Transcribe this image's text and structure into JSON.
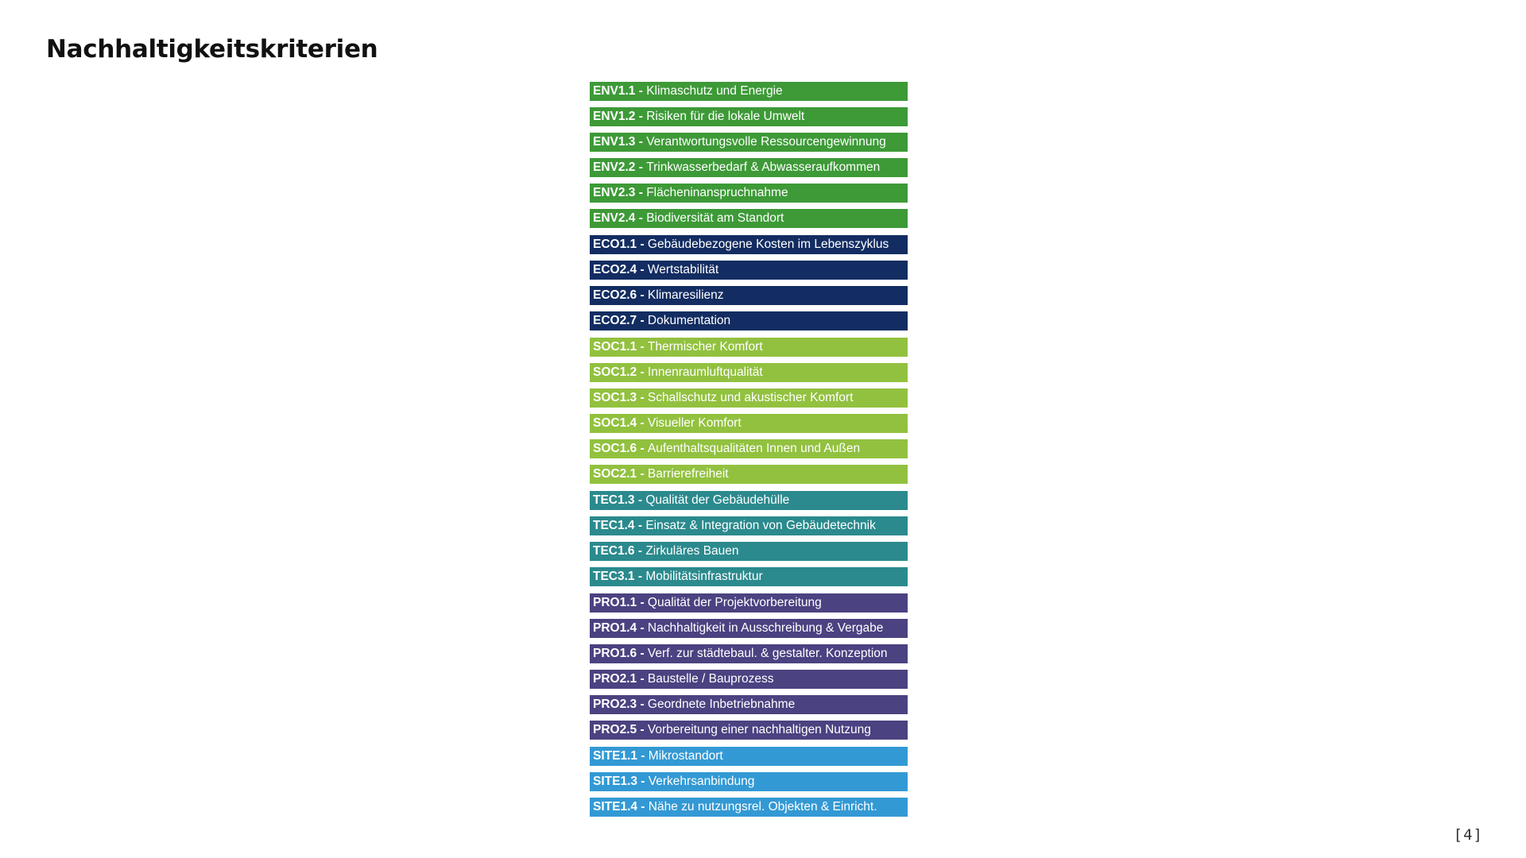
{
  "page": {
    "title": "Nachhaltigkeitskriterien",
    "page_number": "[4]"
  },
  "groups": [
    {
      "key": "ENV",
      "color": "#3d9a37",
      "items": [
        {
          "code": "ENV1.1",
          "label": "Klimaschutz und Energie"
        },
        {
          "code": "ENV1.2",
          "label": "Risiken für die lokale Umwelt"
        },
        {
          "code": "ENV1.3",
          "label": "Verantwortungsvolle Ressourcengewinnung"
        },
        {
          "code": "ENV2.2",
          "label": "Trinkwasserbedarf & Abwasseraufkommen"
        },
        {
          "code": "ENV2.3",
          "label": "Flächeninanspruchnahme"
        },
        {
          "code": "ENV2.4",
          "label": "Biodiversität am Standort"
        }
      ]
    },
    {
      "key": "ECO",
      "color": "#132d62",
      "items": [
        {
          "code": "ECO1.1",
          "label": "Gebäudebezogene Kosten im Lebenszyklus"
        },
        {
          "code": "ECO2.4",
          "label": "Wertstabilität"
        },
        {
          "code": "ECO2.6",
          "label": "Klimaresilienz"
        },
        {
          "code": "ECO2.7",
          "label": "Dokumentation"
        }
      ]
    },
    {
      "key": "SOC",
      "color": "#92c13f",
      "items": [
        {
          "code": "SOC1.1",
          "label": "Thermischer Komfort"
        },
        {
          "code": "SOC1.2",
          "label": "Innenraumluftqualität"
        },
        {
          "code": "SOC1.3",
          "label": "Schallschutz und akustischer Komfort"
        },
        {
          "code": "SOC1.4",
          "label": "Visueller Komfort"
        },
        {
          "code": "SOC1.6",
          "label": "Aufenthaltsqualitäten Innen und Außen"
        },
        {
          "code": "SOC2.1",
          "label": "Barrierefreiheit"
        }
      ]
    },
    {
      "key": "TEC",
      "color": "#2b8a8d",
      "items": [
        {
          "code": "TEC1.3",
          "label": "Qualität der Gebäudehülle"
        },
        {
          "code": "TEC1.4",
          "label": "Einsatz & Integration von Gebäudetechnik"
        },
        {
          "code": "TEC1.6",
          "label": "Zirkuläres Bauen"
        },
        {
          "code": "TEC3.1",
          "label": "Mobilitätsinfrastruktur"
        }
      ]
    },
    {
      "key": "PRO",
      "color": "#4b4281",
      "items": [
        {
          "code": "PRO1.1",
          "label": "Qualität der Projektvorbereitung"
        },
        {
          "code": "PRO1.4",
          "label": "Nachhaltigkeit in Ausschreibung & Vergabe"
        },
        {
          "code": "PRO1.6",
          "label": "Verf. zur städtebaul. & gestalter. Konzeption"
        },
        {
          "code": "PRO2.1",
          "label": "Baustelle / Bauprozess"
        },
        {
          "code": "PRO2.3",
          "label": "Geordnete Inbetriebnahme"
        },
        {
          "code": "PRO2.5",
          "label": "Vorbereitung einer nachhaltigen Nutzung"
        }
      ]
    },
    {
      "key": "SITE",
      "color": "#3399d4",
      "items": [
        {
          "code": "SITE1.1",
          "label": "Mikrostandort"
        },
        {
          "code": "SITE1.3",
          "label": "Verkehrsanbindung"
        },
        {
          "code": "SITE1.4",
          "label": "Nähe zu nutzungsrel. Objekten & Einricht."
        }
      ]
    }
  ]
}
